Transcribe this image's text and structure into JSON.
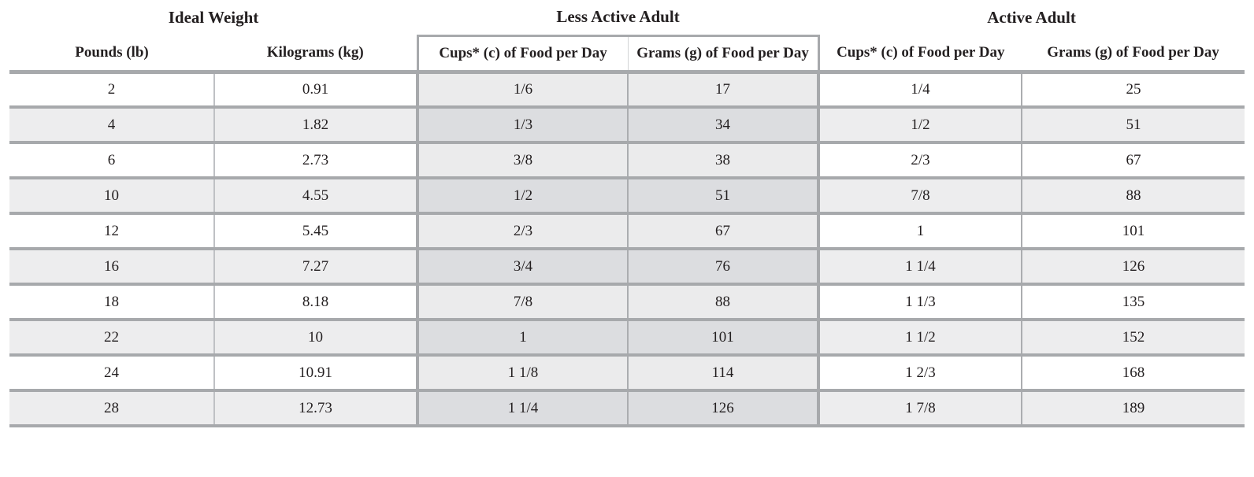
{
  "table": {
    "groups": [
      {
        "label": "Ideal Weight",
        "columns": [
          "Pounds (lb)",
          "Kilograms (kg)"
        ]
      },
      {
        "label": "Less Active Adult",
        "columns": [
          "Cups* (c) of Food per Day",
          "Grams (g) of Food per Day"
        ]
      },
      {
        "label": "Active Adult",
        "columns": [
          "Cups* (c) of Food per Day",
          "Grams (g) of Food per Day"
        ]
      }
    ],
    "rows": [
      [
        "2",
        "0.91",
        "1/6",
        "17",
        "1/4",
        "25"
      ],
      [
        "4",
        "1.82",
        "1/3",
        "34",
        "1/2",
        "51"
      ],
      [
        "6",
        "2.73",
        "3/8",
        "38",
        "2/3",
        "67"
      ],
      [
        "10",
        "4.55",
        "1/2",
        "51",
        "7/8",
        "88"
      ],
      [
        "12",
        "5.45",
        "2/3",
        "67",
        "1",
        "101"
      ],
      [
        "16",
        "7.27",
        "3/4",
        "76",
        "1 1/4",
        "126"
      ],
      [
        "18",
        "8.18",
        "7/8",
        "88",
        "1 1/3",
        "135"
      ],
      [
        "22",
        "10",
        "1",
        "101",
        "1 1/2",
        "152"
      ],
      [
        "24",
        "10.91",
        "1 1/8",
        "114",
        "1 2/3",
        "168"
      ],
      [
        "28",
        "12.73",
        "1 1/4",
        "126",
        "1 7/8",
        "189"
      ]
    ],
    "colors": {
      "border_gray": "#a7a9ac",
      "row_alt_bg": "#ededee",
      "la_light_bg": "#ebebec",
      "la_dark_bg": "#dcdde0",
      "thin_line": "#bfc1c4",
      "mid_line": "#abadb0",
      "header_box_inner_line": "#d2d3d5",
      "ink": "#231f20"
    }
  }
}
